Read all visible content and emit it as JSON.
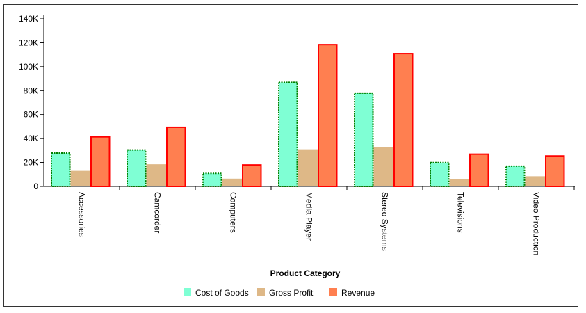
{
  "chart_data": {
    "type": "bar",
    "title": "",
    "xlabel": "Product Category",
    "ylabel": "",
    "ylim": [
      0,
      140000
    ],
    "yticks": [
      "0",
      "20K",
      "40K",
      "60K",
      "80K",
      "100K",
      "120K",
      "140K"
    ],
    "ytick_values": [
      0,
      20000,
      40000,
      60000,
      80000,
      100000,
      120000,
      140000
    ],
    "grid": false,
    "legend_position": "bottom",
    "categories": [
      "Accessories",
      "Camcorder",
      "Computers",
      "Media Player",
      "Stereo Systems",
      "Televisions",
      "Video Production"
    ],
    "series": [
      {
        "name": "Cost of Goods",
        "color": "#7fffd4",
        "border": "#008000",
        "border_style": "dotted",
        "values": [
          28500,
          31000,
          11500,
          87500,
          78500,
          20500,
          17500
        ]
      },
      {
        "name": "Gross Profit",
        "color": "#deb887",
        "border": "none",
        "border_style": "none",
        "values": [
          13000,
          18500,
          6500,
          31000,
          33000,
          6000,
          8500
        ]
      },
      {
        "name": "Revenue",
        "color": "#ff7f50",
        "border": "#ff0000",
        "border_style": "solid",
        "values": [
          42000,
          50000,
          18500,
          119000,
          111500,
          27500,
          26000
        ]
      }
    ]
  }
}
